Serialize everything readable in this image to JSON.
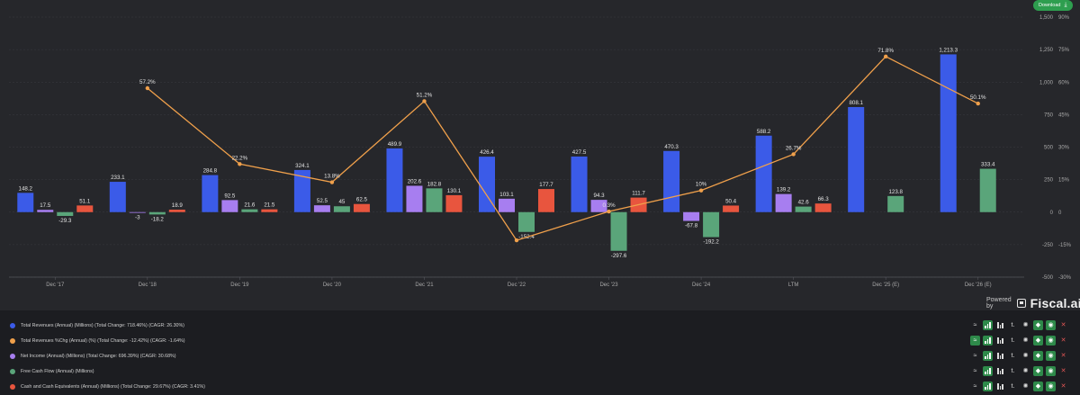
{
  "header": {
    "download_label": "Download",
    "download_icon": "download-icon"
  },
  "branding": {
    "powered_by": "Powered by",
    "logo_text": "Fiscal.ai"
  },
  "colors": {
    "background": "#26272b",
    "total_revenues": "#3b5be8",
    "revenue_growth": "#f0a04b",
    "net_income": "#a77ef0",
    "free_cash_flow": "#5aa57a",
    "cash": "#e8553e",
    "grid": "#3a3b40",
    "tick": "#a9a9a9"
  },
  "chart_data": {
    "type": "bar",
    "categories": [
      "Dec '17",
      "Dec '18",
      "Dec '19",
      "Dec '20",
      "Dec '21",
      "Dec '22",
      "Dec '23",
      "Dec '24",
      "LTM",
      "Dec '25 (E)",
      "Dec '26 (E)"
    ],
    "y_axis_left": {
      "ylim": [
        -500,
        1500
      ],
      "ticks": [
        1500,
        1250,
        1000,
        750,
        500,
        250,
        0,
        -250,
        -500
      ],
      "tick_labels": [
        "1,500",
        "1,250",
        "1,000",
        "750",
        "500",
        "250",
        "0",
        "-250",
        "-500"
      ]
    },
    "y_axis_right": {
      "ylim": [
        -30,
        90
      ],
      "ticks": [
        90,
        75,
        60,
        45,
        30,
        15,
        0,
        -15,
        -30
      ],
      "tick_labels": [
        "90%",
        "75%",
        "60%",
        "45%",
        "30%",
        "15%",
        "0",
        "-15%",
        "-30%"
      ]
    },
    "grid": true,
    "series": [
      {
        "key": "total_revenues",
        "kind": "bar",
        "values": [
          148.2,
          233.1,
          284.8,
          324.1,
          489.9,
          426.4,
          427.5,
          470.3,
          588.2,
          808.1,
          1213.3
        ],
        "labels": [
          "148.2",
          "233.1",
          "284.8",
          "324.1",
          "489.9",
          "426.4",
          "427.5",
          "470.3",
          "588.2",
          "808.1",
          "1,213.3"
        ]
      },
      {
        "key": "net_income",
        "kind": "bar",
        "values": [
          17.5,
          -3,
          92.5,
          52.5,
          202.6,
          103.1,
          94.3,
          -67.8,
          139.2,
          null,
          null
        ],
        "labels": [
          "17.5",
          "-3",
          "92.5",
          "52.5",
          "202.6",
          "103.1",
          "94.3",
          "-67.8",
          "139.2",
          "",
          ""
        ]
      },
      {
        "key": "free_cash_flow",
        "kind": "bar",
        "values": [
          -29.3,
          -18.2,
          21.6,
          45,
          182.8,
          -152.4,
          -297.6,
          -192.2,
          42.6,
          123.8,
          333.4
        ],
        "labels": [
          "-29.3",
          "-18.2",
          "21.6",
          "45",
          "182.8",
          "-152.4",
          "-297.6",
          "-192.2",
          "42.6",
          "123.8",
          "333.4"
        ]
      },
      {
        "key": "cash",
        "kind": "bar",
        "values": [
          51.1,
          18.9,
          21.5,
          62.5,
          130.1,
          177.7,
          111.7,
          50.4,
          66.3,
          null,
          null
        ],
        "labels": [
          "51.1",
          "18.9",
          "21.5",
          "62.5",
          "130.1",
          "177.7",
          "111.7",
          "50.4",
          "66.3",
          "",
          ""
        ]
      },
      {
        "key": "revenue_growth",
        "kind": "line",
        "axis": "right",
        "unit": "%",
        "values": [
          null,
          57.2,
          22.2,
          13.8,
          51.2,
          -13,
          0.3,
          10,
          26.7,
          71.8,
          50.1
        ],
        "labels": [
          "",
          "57.2%",
          "22.2%",
          "13.8%",
          "51.2%",
          "",
          "0.3%",
          "10%",
          "26.7%",
          "71.8%",
          "50.1%"
        ]
      }
    ]
  },
  "legend": {
    "items": [
      {
        "color": "#3b5be8",
        "label": "Total Revenues (Annual) (Millions) (Total Change: 718.46%) (CAGR: 26.30%)"
      },
      {
        "color": "#f0a04b",
        "label": "Total Revenues %Chg (Annual) (%) (Total Change: -12.42%) (CAGR: -1.64%)"
      },
      {
        "color": "#a77ef0",
        "label": "Net Income (Annual) (Millions) (Total Change: 696.39%) (CAGR: 30.68%)"
      },
      {
        "color": "#5aa57a",
        "label": "Free Cash Flow (Annual) (Millions)"
      },
      {
        "color": "#e8553e",
        "label": "Cash and Cash Equivalents (Annual) (Millions) (Total Change: 29.67%) (CAGR: 3.41%)"
      }
    ],
    "tool_icons": [
      "trend-icon",
      "bar-chart-icon",
      "columns-icon",
      "type-icon",
      "settings-icon",
      "tag-icon",
      "eye-icon",
      "close-icon"
    ]
  }
}
